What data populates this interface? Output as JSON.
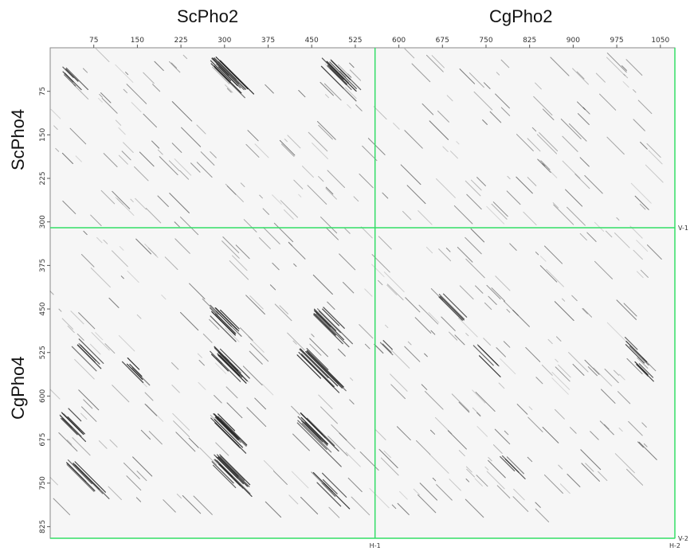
{
  "titles": {
    "top": [
      "ScPho2",
      "CgPho2"
    ],
    "left": [
      "ScPho4",
      "CgPho4"
    ]
  },
  "x_axis": {
    "ticks": [
      "75",
      "150",
      "225",
      "300",
      "375",
      "450",
      "525",
      "600",
      "675",
      "750",
      "825",
      "900",
      "975",
      "1050"
    ],
    "max": 1075
  },
  "y_axis": {
    "ticks": [
      "75",
      "150",
      "225",
      "300",
      "375",
      "450",
      "525",
      "600",
      "675",
      "750",
      "825"
    ],
    "max": 845
  },
  "boundaries": {
    "vertical": [
      {
        "label": "H-1",
        "value": 559
      },
      {
        "label": "H-2",
        "value": 1075
      }
    ],
    "horizontal": [
      {
        "label": "V-1",
        "value": 310
      },
      {
        "label": "V-2",
        "value": 845
      }
    ]
  },
  "colors": {
    "plot_bg": "#f6f6f6",
    "boundary_line": "#33dd66",
    "dots": "#222222"
  }
}
